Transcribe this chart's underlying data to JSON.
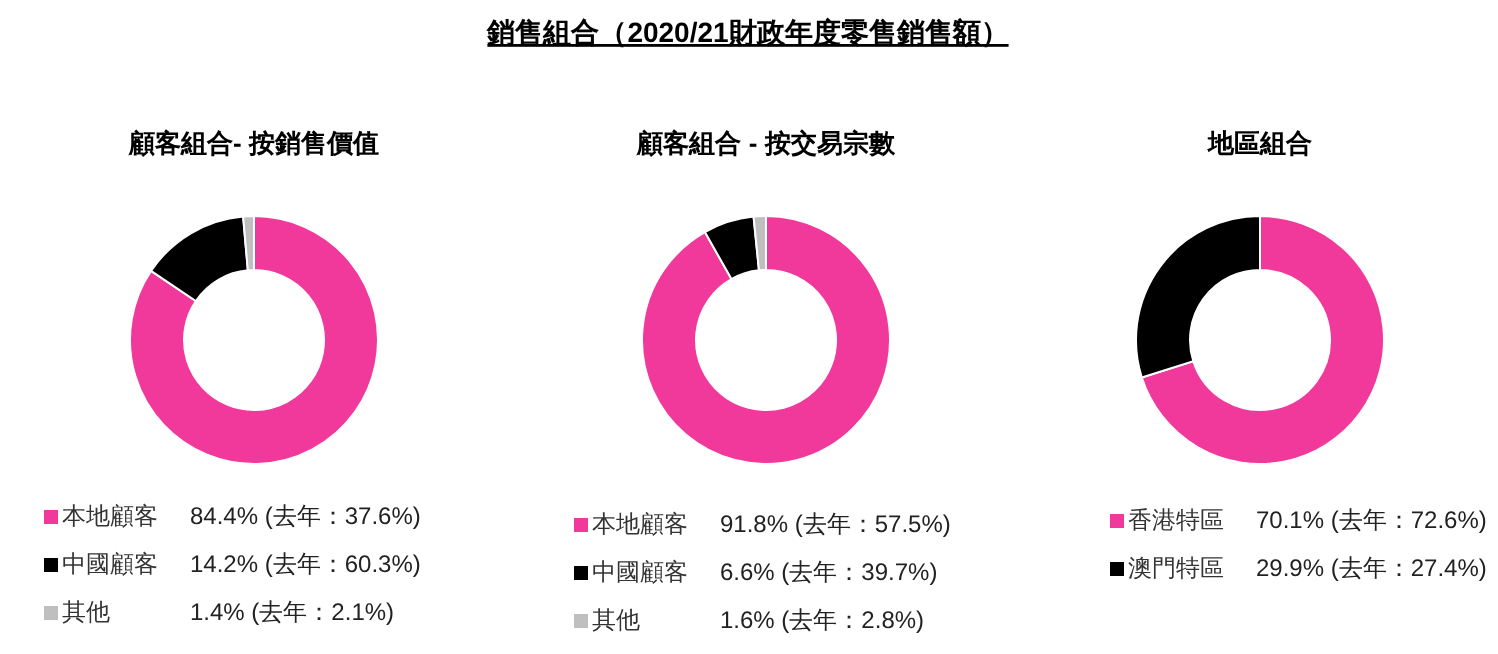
{
  "chart_data": [
    {
      "type": "donut",
      "title": "顧客組合- 按銷售價值",
      "annotations": [
        "銷售組合（2020/21財政年度零售銷售額）"
      ],
      "categories": [
        "本地顧客",
        "中國顧客",
        "其他"
      ],
      "values": [
        84.4,
        14.2,
        1.4
      ],
      "value_labels": [
        "84.4% (去年：37.6%)",
        "14.2% (去年：60.3%)",
        "1.4% (去年：2.1%)"
      ],
      "colors": [
        "#f0399b",
        "#000000",
        "#bfbfbf"
      ],
      "legend": "bottom"
    },
    {
      "type": "donut",
      "title": "顧客組合 - 按交易宗數",
      "categories": [
        "本地顧客",
        "中國顧客",
        "其他"
      ],
      "values": [
        91.8,
        6.6,
        1.6
      ],
      "value_labels": [
        "91.8% (去年：57.5%)",
        "6.6% (去年：39.7%)",
        "1.6% (去年：2.8%)"
      ],
      "colors": [
        "#f0399b",
        "#000000",
        "#bfbfbf"
      ],
      "legend": "bottom"
    },
    {
      "type": "donut",
      "title": "地區組合",
      "categories": [
        "香港特區",
        "澳門特區"
      ],
      "values": [
        70.1,
        29.9
      ],
      "value_labels": [
        "70.1% (去年：72.6%)",
        "29.9% (去年：27.4%)"
      ],
      "colors": [
        "#f0399b",
        "#000000"
      ],
      "legend": "bottom"
    }
  ]
}
